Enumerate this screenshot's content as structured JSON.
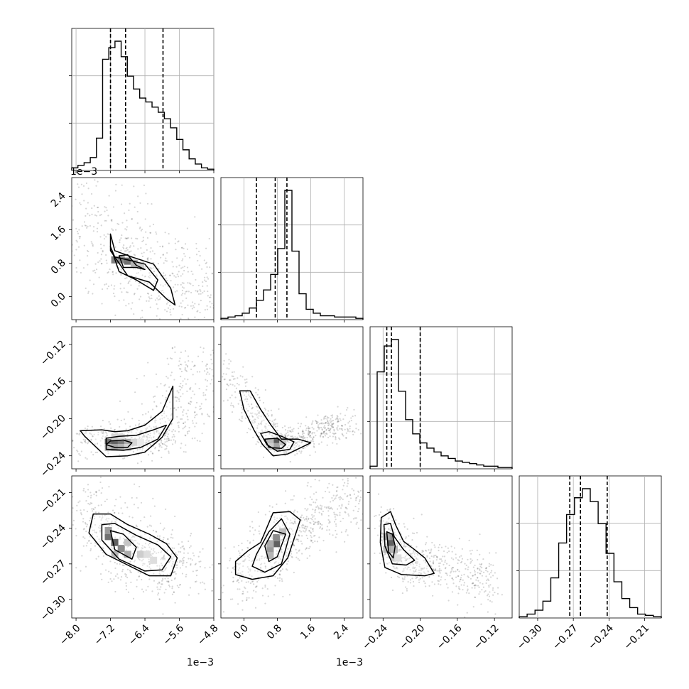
{
  "chart_data": {
    "type": "corner",
    "grid": true,
    "params": [
      {
        "range": [
          -0.0081,
          -0.0048
        ],
        "ticks": [
          -8.0,
          -7.2,
          -6.4,
          -5.6,
          -4.8
        ],
        "tick_labels": [
          "−8.0",
          "−7.2",
          "−6.4",
          "−5.6",
          "−4.8"
        ],
        "offset_label": "1e−3",
        "hist": [
          0.02,
          0.04,
          0.06,
          0.1,
          0.25,
          0.86,
          0.95,
          1.0,
          0.88,
          0.73,
          0.63,
          0.56,
          0.53,
          0.49,
          0.45,
          0.4,
          0.33,
          0.24,
          0.16,
          0.09,
          0.05,
          0.02,
          0.01
        ],
        "quantiles": [
          -0.0072,
          -0.00685,
          -0.00598
        ]
      },
      {
        "range": [
          -0.00055,
          0.00285
        ],
        "ticks": [
          0.0,
          0.8,
          1.6,
          2.4
        ],
        "tick_labels": [
          "0.0",
          "0.8",
          "1.6",
          "2.4"
        ],
        "offset_label": "1e−3",
        "hist": [
          0.01,
          0.02,
          0.03,
          0.05,
          0.09,
          0.15,
          0.23,
          0.35,
          0.55,
          1.0,
          0.53,
          0.2,
          0.08,
          0.05,
          0.03,
          0.03,
          0.02,
          0.02,
          0.02,
          0.01
        ],
        "quantiles": [
          0.0003,
          0.00075,
          0.00103
        ]
      },
      {
        "range": [
          -0.254,
          -0.101
        ],
        "ticks": [
          -0.24,
          -0.2,
          -0.16,
          -0.12
        ],
        "tick_labels": [
          "−0.24",
          "−0.20",
          "−0.16",
          "−0.12"
        ],
        "hist": [
          0.02,
          0.75,
          0.95,
          1.0,
          0.6,
          0.38,
          0.27,
          0.2,
          0.16,
          0.13,
          0.1,
          0.08,
          0.06,
          0.05,
          0.04,
          0.03,
          0.02,
          0.02,
          0.01,
          0.01
        ],
        "quantiles": [
          -0.236,
          -0.231,
          -0.2
        ]
      },
      {
        "range": [
          -0.3155,
          -0.196
        ],
        "ticks": [
          -0.3,
          -0.27,
          -0.24,
          -0.21
        ],
        "tick_labels": [
          "−0.30",
          "−0.27",
          "−0.24",
          "−0.21"
        ],
        "hist": [
          0.01,
          0.03,
          0.06,
          0.13,
          0.31,
          0.58,
          0.8,
          0.93,
          1.0,
          0.9,
          0.73,
          0.5,
          0.28,
          0.15,
          0.08,
          0.03,
          0.02,
          0.01
        ],
        "quantiles": [
          -0.273,
          -0.264,
          -0.2415
        ]
      }
    ],
    "pairs": [
      {
        "row": 1,
        "col": 0,
        "trend": {
          "x": [
            -0.0081,
            -0.0074,
            -0.0068,
            -0.0062,
            -0.0057,
            -0.0053
          ],
          "y": [
            0.0027,
            0.0018,
            0.001,
            0.00065,
            0.0002,
            -0.0003
          ]
        },
        "spread": [
          0.0008,
          0.00035
        ],
        "contours": [
          {
            "x": [
              -0.0072,
              -0.0071,
              -0.0067,
              -0.0062,
              -0.0058,
              -0.0057,
              -0.0059,
              -0.0063,
              -0.0068,
              -0.0072
            ],
            "y": [
              0.0015,
              0.0011,
              0.00095,
              0.00078,
              0.0002,
              -0.0002,
              -5e-05,
              0.00035,
              0.0005,
              0.0011
            ]
          },
          {
            "x": [
              -0.0072,
              -0.0071,
              -0.0068,
              -0.0064,
              -0.0061,
              -0.0062,
              -0.0066,
              -0.007
            ],
            "y": [
              0.0012,
              0.00095,
              0.00088,
              0.00078,
              0.0004,
              0.00015,
              0.0004,
              0.0006
            ]
          },
          {
            "x": [
              -0.007,
              -0.0068,
              -0.0066,
              -0.0064,
              -0.0066,
              -0.0069
            ],
            "y": [
              0.00098,
              0.001,
              0.00075,
              0.00065,
              0.0007,
              0.0007
            ]
          }
        ]
      },
      {
        "row": 2,
        "col": 0,
        "trend": {
          "x": [
            -0.0076,
            -0.0072,
            -0.0068,
            -0.0064,
            -0.0061,
            -0.0058,
            -0.0055,
            -0.0052
          ],
          "y": [
            -0.214,
            -0.225,
            -0.228,
            -0.226,
            -0.218,
            -0.2,
            -0.172,
            -0.13
          ]
        },
        "spread": [
          0.0005,
          0.008
        ],
        "contours": [
          {
            "x": [
              -0.0079,
              -0.0074,
              -0.0071,
              -0.0068,
              -0.0064,
              -0.006,
              -0.00575,
              -0.00575,
              -0.006,
              -0.0064,
              -0.0068,
              -0.0073,
              -0.0078
            ],
            "y": [
              -0.213,
              -0.212,
              -0.214,
              -0.213,
              -0.207,
              -0.192,
              -0.165,
              -0.2,
              -0.22,
              -0.236,
              -0.24,
              -0.241,
              -0.219
            ]
          },
          {
            "x": [
              -0.0073,
              -0.007,
              -0.0066,
              -0.0062,
              -0.0059,
              -0.0061,
              -0.0065,
              -0.0069,
              -0.0073
            ],
            "y": [
              -0.221,
              -0.219,
              -0.218,
              -0.212,
              -0.207,
              -0.222,
              -0.231,
              -0.234,
              -0.233
            ]
          },
          {
            "x": [
              -0.0072,
              -0.0069,
              -0.0067,
              -0.0068,
              -0.0071,
              -0.0073
            ],
            "y": [
              -0.224,
              -0.223,
              -0.226,
              -0.231,
              -0.231,
              -0.228
            ]
          }
        ]
      },
      {
        "row": 2,
        "col": 1,
        "trend": {
          "x": [
            -0.0005,
            0.0,
            0.0004,
            0.0008,
            0.0012,
            0.0016,
            0.002,
            0.0025
          ],
          "y": [
            -0.145,
            -0.175,
            -0.205,
            -0.227,
            -0.225,
            -0.216,
            -0.21,
            -0.202
          ]
        },
        "spread": [
          0.0002,
          0.008
        ],
        "contours": [
          {
            "x": [
              -0.0001,
              0.00015,
              0.0004,
              0.00065,
              0.0009,
              0.0013,
              0.0016,
              0.00105,
              0.0007,
              0.00045,
              0.00025,
              0.0
            ],
            "y": [
              -0.17,
              -0.17,
              -0.19,
              -0.207,
              -0.222,
              -0.222,
              -0.226,
              -0.238,
              -0.24,
              -0.228,
              -0.213,
              -0.19
            ]
          },
          {
            "x": [
              0.0004,
              0.0006,
              0.0009,
              0.0012,
              0.0011,
              0.0008,
              0.00055
            ],
            "y": [
              -0.216,
              -0.214,
              -0.219,
              -0.225,
              -0.233,
              -0.235,
              -0.228
            ]
          },
          {
            "x": [
              0.0005,
              0.0008,
              0.001,
              0.0009,
              0.0006
            ],
            "y": [
              -0.222,
              -0.221,
              -0.228,
              -0.232,
              -0.231
            ]
          }
        ]
      },
      {
        "row": 3,
        "col": 0,
        "trend": {
          "x": [
            -0.0079,
            -0.0074,
            -0.0069,
            -0.0064,
            -0.0059,
            -0.0055
          ],
          "y": [
            -0.212,
            -0.237,
            -0.255,
            -0.262,
            -0.268,
            -0.28
          ]
        },
        "spread": [
          0.0005,
          0.014
        ],
        "contours": [
          {
            "x": [
              -0.0076,
              -0.0072,
              -0.0068,
              -0.0063,
              -0.0059,
              -0.00565,
              -0.0058,
              -0.0063,
              -0.0068,
              -0.0073,
              -0.0077
            ],
            "y": [
              -0.228,
              -0.228,
              -0.237,
              -0.245,
              -0.253,
              -0.265,
              -0.28,
              -0.28,
              -0.271,
              -0.262,
              -0.244
            ]
          },
          {
            "x": [
              -0.0074,
              -0.0071,
              -0.0066,
              -0.0061,
              -0.0058,
              -0.006,
              -0.0064,
              -0.007,
              -0.0074
            ],
            "y": [
              -0.237,
              -0.236,
              -0.246,
              -0.254,
              -0.264,
              -0.275,
              -0.276,
              -0.266,
              -0.25
            ]
          },
          {
            "x": [
              -0.0072,
              -0.0069,
              -0.0066,
              -0.0067,
              -0.0071
            ],
            "y": [
              -0.242,
              -0.245,
              -0.256,
              -0.266,
              -0.258
            ]
          }
        ]
      },
      {
        "row": 3,
        "col": 1,
        "trend": {
          "x": [
            -0.0004,
            0.0002,
            0.0006,
            0.001,
            0.0015,
            0.0022,
            0.0027
          ],
          "y": [
            -0.29,
            -0.277,
            -0.262,
            -0.248,
            -0.236,
            -0.223,
            -0.208
          ]
        },
        "spread": [
          0.00035,
          0.012
        ],
        "contours": [
          {
            "x": [
              -0.0002,
              0.0001,
              0.0004,
              0.0007,
              0.0011,
              0.00135,
              0.00105,
              0.0007,
              0.0002,
              -0.0002
            ],
            "y": [
              -0.268,
              -0.259,
              -0.252,
              -0.227,
              -0.226,
              -0.233,
              -0.265,
              -0.28,
              -0.283,
              -0.279
            ]
          },
          {
            "x": [
              0.0003,
              0.0006,
              0.0009,
              0.0011,
              0.0009,
              0.0005,
              0.0002
            ],
            "y": [
              -0.262,
              -0.243,
              -0.232,
              -0.245,
              -0.27,
              -0.277,
              -0.272
            ]
          },
          {
            "x": [
              0.0005,
              0.0007,
              0.001,
              0.0008,
              0.0006
            ],
            "y": [
              -0.255,
              -0.242,
              -0.245,
              -0.264,
              -0.268
            ]
          }
        ]
      },
      {
        "row": 3,
        "col": 2,
        "trend": {
          "x": [
            -0.242,
            -0.235,
            -0.228,
            -0.218,
            -0.205,
            -0.188,
            -0.168,
            -0.14,
            -0.12
          ],
          "y": [
            -0.235,
            -0.25,
            -0.257,
            -0.264,
            -0.268,
            -0.272,
            -0.278,
            -0.28,
            -0.29
          ]
        },
        "spread": [
          0.005,
          0.012
        ],
        "contours": [
          {
            "x": [
              -0.242,
              -0.232,
              -0.226,
              -0.218,
              -0.206,
              -0.195,
              -0.185,
              -0.195,
              -0.22,
              -0.238,
              -0.243
            ],
            "y": [
              -0.231,
              -0.226,
              -0.238,
              -0.251,
              -0.258,
              -0.265,
              -0.278,
              -0.28,
              -0.279,
              -0.273,
              -0.252
            ]
          },
          {
            "x": [
              -0.239,
              -0.232,
              -0.228,
              -0.218,
              -0.206,
              -0.215,
              -0.23,
              -0.238
            ],
            "y": [
              -0.237,
              -0.236,
              -0.247,
              -0.258,
              -0.267,
              -0.271,
              -0.27,
              -0.255
            ]
          },
          {
            "x": [
              -0.236,
              -0.23,
              -0.227,
              -0.229,
              -0.234
            ],
            "y": [
              -0.243,
              -0.245,
              -0.255,
              -0.265,
              -0.26
            ]
          }
        ]
      }
    ],
    "density_cells": [
      {
        "row": 1,
        "col": 0,
        "cells": [
          [
            -0.0071,
            0.00088,
            0.5
          ],
          [
            -0.00695,
            0.00088,
            0.7
          ],
          [
            -0.0068,
            0.00085,
            0.85
          ],
          [
            -0.00665,
            0.0008,
            0.45
          ],
          [
            -0.0065,
            0.00075,
            0.3
          ]
        ]
      },
      {
        "row": 2,
        "col": 0,
        "cells": [
          [
            -0.00725,
            -0.2255,
            0.85
          ],
          [
            -0.0071,
            -0.2255,
            0.95
          ],
          [
            -0.00695,
            -0.2255,
            0.8
          ],
          [
            -0.0068,
            -0.2255,
            0.5
          ],
          [
            -0.00665,
            -0.2255,
            0.25
          ],
          [
            -0.0065,
            -0.2255,
            0.12
          ],
          [
            -0.00725,
            -0.231,
            0.4
          ],
          [
            -0.0071,
            -0.231,
            0.55
          ],
          [
            -0.00695,
            -0.231,
            0.45
          ],
          [
            -0.0068,
            -0.231,
            0.25
          ],
          [
            -0.0071,
            -0.22,
            0.25
          ],
          [
            -0.00695,
            -0.22,
            0.2
          ]
        ]
      },
      {
        "row": 2,
        "col": 1,
        "cells": [
          [
            0.00078,
            -0.225,
            1.0
          ],
          [
            0.00078,
            -0.23,
            0.55
          ],
          [
            0.00063,
            -0.225,
            0.4
          ],
          [
            0.00093,
            -0.225,
            0.35
          ],
          [
            0.00063,
            -0.23,
            0.3
          ]
        ]
      },
      {
        "row": 3,
        "col": 0,
        "cells": [
          [
            -0.00725,
            -0.247,
            0.85
          ],
          [
            -0.0071,
            -0.252,
            0.95
          ],
          [
            -0.00695,
            -0.257,
            0.7
          ],
          [
            -0.0068,
            -0.262,
            0.5
          ],
          [
            -0.00725,
            -0.242,
            0.6
          ],
          [
            -0.0071,
            -0.262,
            0.45
          ],
          [
            -0.0068,
            -0.252,
            0.35
          ],
          [
            -0.0065,
            -0.262,
            0.3
          ],
          [
            -0.00635,
            -0.262,
            0.2
          ],
          [
            -0.0062,
            -0.267,
            0.2
          ]
        ]
      },
      {
        "row": 3,
        "col": 1,
        "cells": [
          [
            0.00078,
            -0.253,
            0.95
          ],
          [
            0.00078,
            -0.248,
            0.7
          ],
          [
            0.00063,
            -0.258,
            0.6
          ],
          [
            0.00063,
            -0.263,
            0.45
          ],
          [
            0.00093,
            -0.243,
            0.4
          ],
          [
            0.00063,
            -0.253,
            0.5
          ]
        ]
      },
      {
        "row": 3,
        "col": 2,
        "cells": [
          [
            -0.232,
            -0.252,
            0.95
          ],
          [
            -0.232,
            -0.247,
            0.7
          ],
          [
            -0.236,
            -0.247,
            0.55
          ],
          [
            -0.232,
            -0.258,
            0.65
          ],
          [
            -0.228,
            -0.258,
            0.45
          ],
          [
            -0.236,
            -0.258,
            0.4
          ],
          [
            -0.228,
            -0.265,
            0.3
          ],
          [
            -0.224,
            -0.265,
            0.2
          ]
        ]
      }
    ]
  }
}
